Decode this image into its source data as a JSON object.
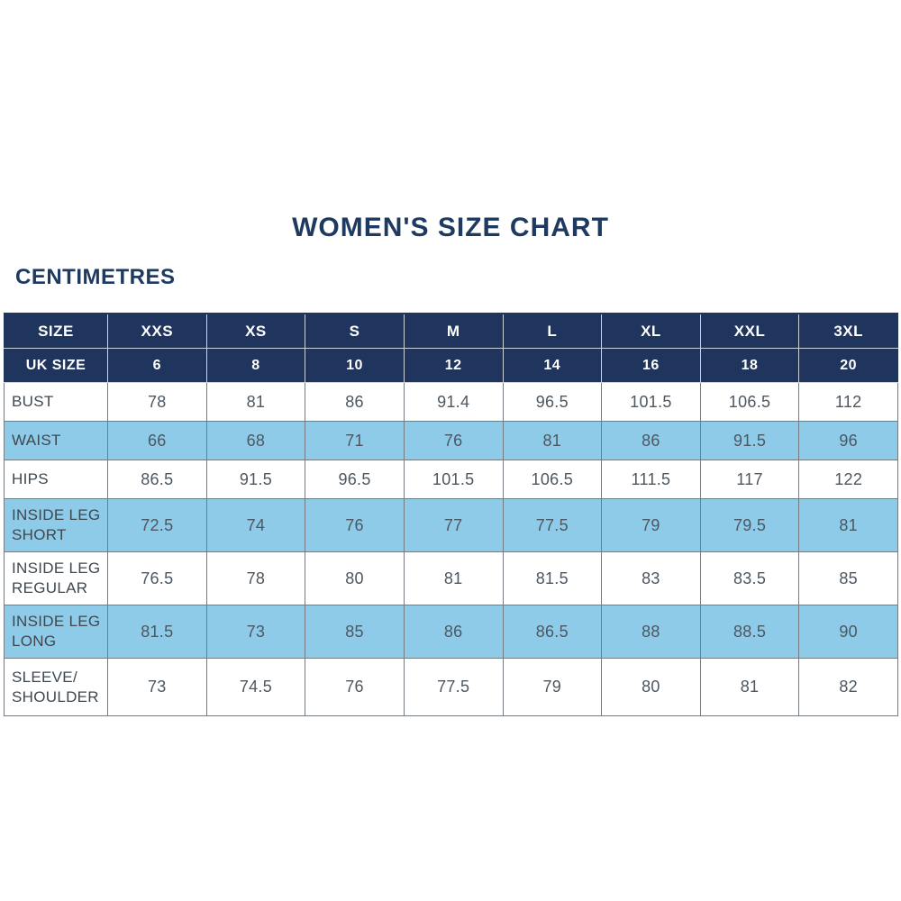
{
  "page": {
    "title": "WOMEN'S SIZE CHART",
    "unit_label": "CENTIMETRES"
  },
  "colors": {
    "navy": "#20355d",
    "light_blue": "#8ecbe9",
    "heading_text": "#1e3a60",
    "cell_text": "#4d5761"
  },
  "chart_data": {
    "type": "table",
    "columns": [
      "SIZE",
      "XXS",
      "XS",
      "S",
      "M",
      "L",
      "XL",
      "XXL",
      "3XL"
    ],
    "uk_size_row": {
      "label": "UK SIZE",
      "values": [
        "6",
        "8",
        "10",
        "12",
        "14",
        "16",
        "18",
        "20"
      ]
    },
    "rows": [
      {
        "label": "BUST",
        "values": [
          "78",
          "81",
          "86",
          "91.4",
          "96.5",
          "101.5",
          "106.5",
          "112"
        ]
      },
      {
        "label": "WAIST",
        "values": [
          "66",
          "68",
          "71",
          "76",
          "81",
          "86",
          "91.5",
          "96"
        ]
      },
      {
        "label": "HIPS",
        "values": [
          "86.5",
          "91.5",
          "96.5",
          "101.5",
          "106.5",
          "111.5",
          "117",
          "122"
        ]
      },
      {
        "label": "INSIDE LEG SHORT",
        "values": [
          "72.5",
          "74",
          "76",
          "77",
          "77.5",
          "79",
          "79.5",
          "81"
        ]
      },
      {
        "label": "INSIDE LEG REGULAR",
        "values": [
          "76.5",
          "78",
          "80",
          "81",
          "81.5",
          "83",
          "83.5",
          "85"
        ]
      },
      {
        "label": "INSIDE LEG LONG",
        "values": [
          "81.5",
          "73",
          "85",
          "86",
          "86.5",
          "88",
          "88.5",
          "90"
        ]
      },
      {
        "label": "SLEEVE/ SHOULDER",
        "values": [
          "73",
          "74.5",
          "76",
          "77.5",
          "79",
          "80",
          "81",
          "82"
        ]
      }
    ]
  }
}
